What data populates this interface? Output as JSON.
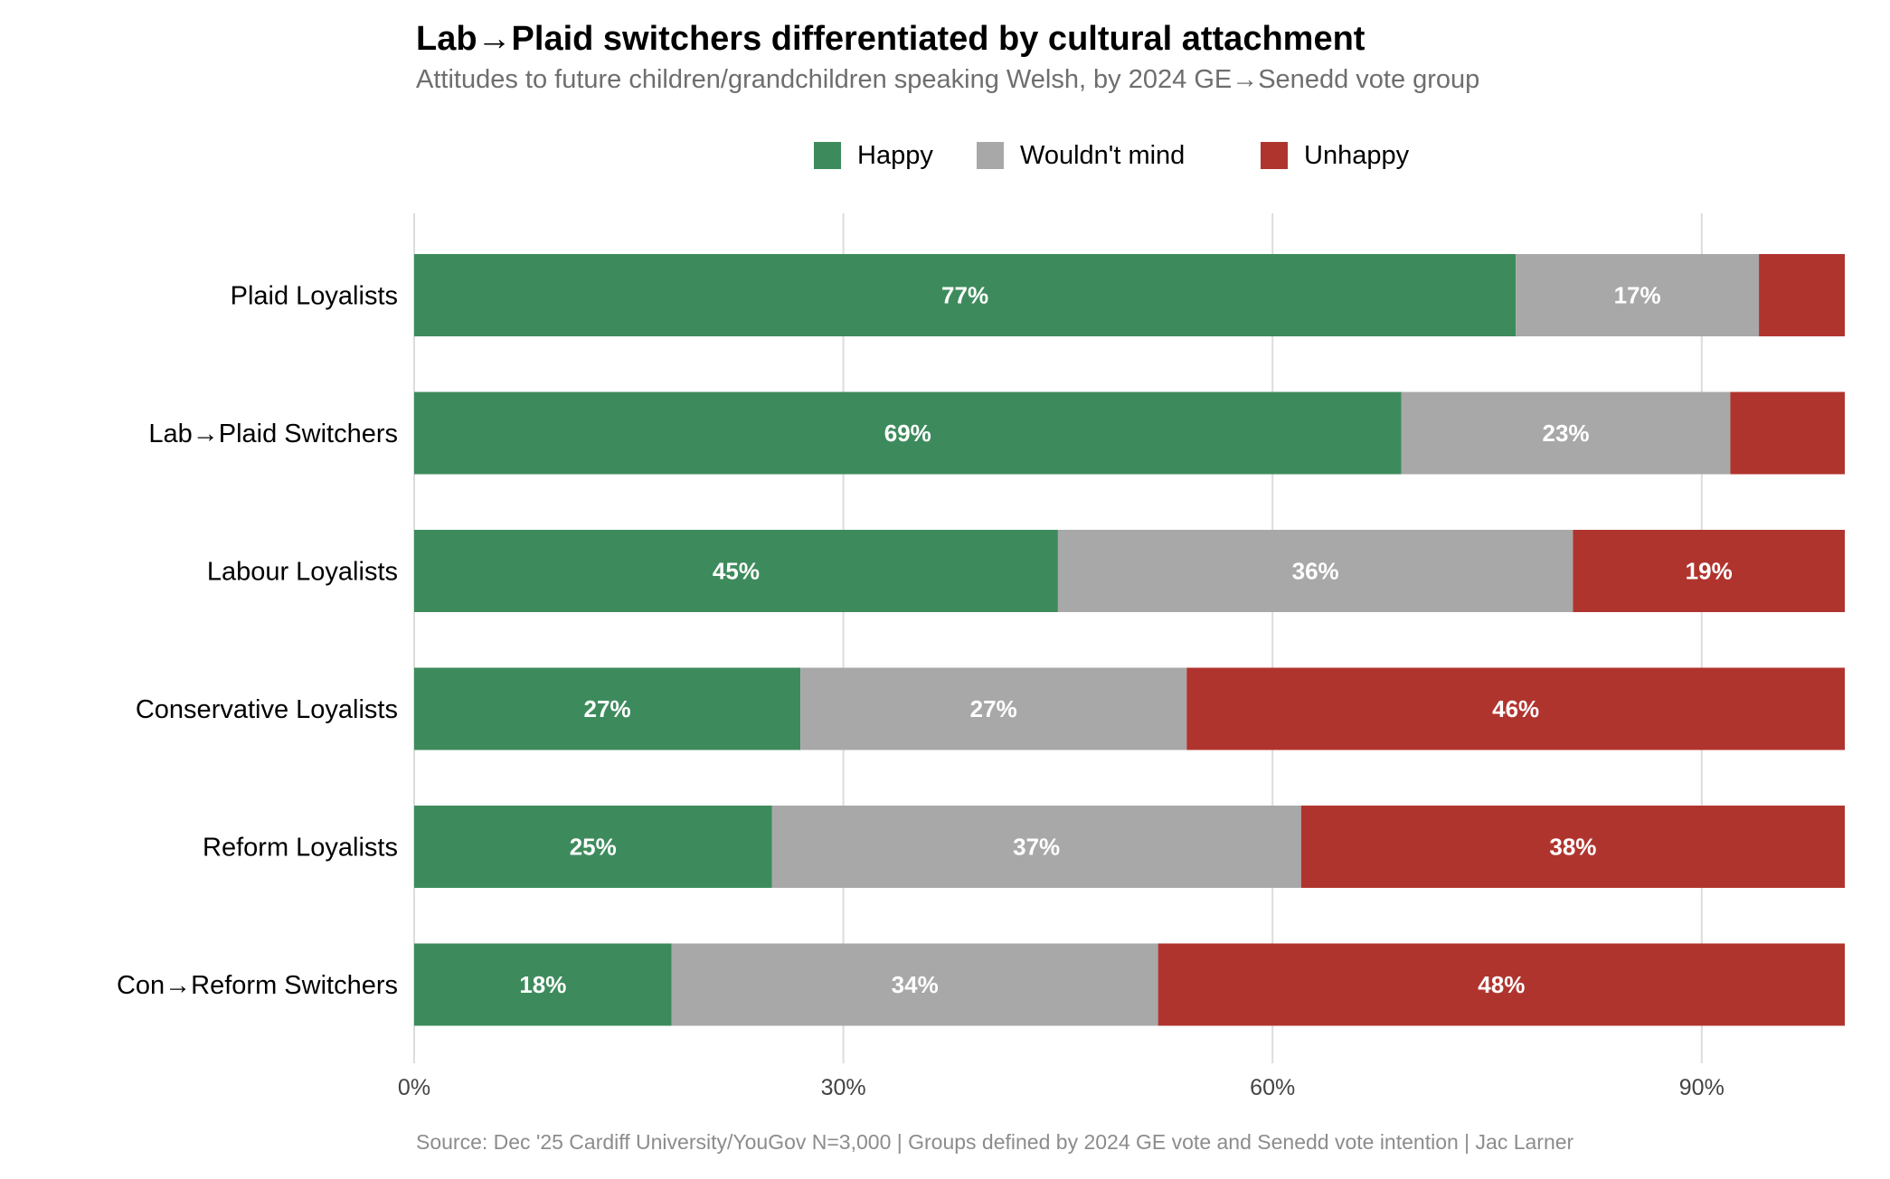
{
  "chart_data": {
    "type": "bar",
    "orientation": "horizontal",
    "stacked": true,
    "title": "Lab→Plaid switchers differentiated by cultural attachment",
    "subtitle": "Attitudes to future children/grandchildren speaking Welsh, by 2024 GE→Senedd vote group",
    "categories": [
      "Plaid Loyalists",
      "Lab→Plaid Switchers",
      "Labour Loyalists",
      "Conservative Loyalists",
      "Reform Loyalists",
      "Con→Reform Switchers"
    ],
    "series": [
      {
        "name": "Happy",
        "color": "#3d8b5c",
        "values": [
          77,
          69,
          45,
          27,
          25,
          18
        ],
        "labels": [
          "77%",
          "69%",
          "45%",
          "27%",
          "25%",
          "18%"
        ]
      },
      {
        "name": "Wouldn't mind",
        "color": "#a8a8a8",
        "values": [
          17,
          23,
          36,
          27,
          37,
          34
        ],
        "labels": [
          "17%",
          "23%",
          "36%",
          "27%",
          "37%",
          "34%"
        ]
      },
      {
        "name": "Unhappy",
        "color": "#b0342e",
        "values": [
          6,
          8,
          19,
          46,
          38,
          48
        ],
        "labels": [
          "",
          "",
          "19%",
          "46%",
          "38%",
          "48%"
        ]
      }
    ],
    "xlim": [
      0,
      100
    ],
    "x_ticks": [
      0,
      30,
      60,
      90
    ],
    "x_tick_labels": [
      "0%",
      "30%",
      "60%",
      "90%"
    ],
    "grid": "vertical",
    "legend_position": "top"
  },
  "footer": {
    "source": "Source: Dec '25 Cardiff University/YouGov N=3,000  |  Groups defined by 2024 GE vote and Senedd vote intention | Jac Larner"
  }
}
